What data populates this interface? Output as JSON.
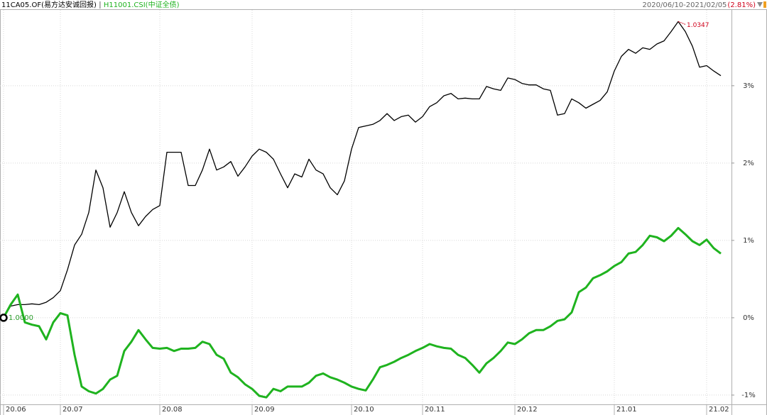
{
  "chart_data": {
    "type": "line",
    "date_range": "2020/06/10-2021/02/05",
    "period_change": "(2.81%)",
    "categories": [
      "20.06",
      null,
      null,
      null,
      null,
      null,
      null,
      null,
      "20.07",
      null,
      null,
      null,
      null,
      null,
      null,
      null,
      null,
      null,
      null,
      null,
      null,
      null,
      "20.08",
      null,
      null,
      null,
      null,
      null,
      null,
      null,
      null,
      null,
      null,
      null,
      null,
      "20.09",
      null,
      null,
      null,
      null,
      null,
      null,
      null,
      null,
      null,
      null,
      null,
      null,
      null,
      "20.10",
      null,
      null,
      null,
      null,
      null,
      null,
      null,
      null,
      null,
      "20.11",
      null,
      null,
      null,
      null,
      null,
      null,
      null,
      null,
      null,
      null,
      null,
      null,
      "20.12",
      null,
      null,
      null,
      null,
      null,
      null,
      null,
      null,
      null,
      null,
      null,
      null,
      null,
      "21.01",
      null,
      null,
      null,
      null,
      null,
      null,
      null,
      null,
      null,
      null,
      null,
      null,
      "21.02",
      null,
      null
    ],
    "series": [
      {
        "name": "11CA05.OF(易方达安诚回报)",
        "color": "#000000",
        "values": [
          0,
          0.15,
          0.17,
          0.17,
          0.18,
          0.17,
          0.2,
          0.26,
          0.35,
          0.62,
          0.94,
          1.08,
          1.36,
          1.91,
          1.68,
          1.17,
          1.36,
          1.63,
          1.36,
          1.19,
          1.31,
          1.4,
          1.45,
          2.14,
          2.14,
          2.14,
          1.71,
          1.71,
          1.91,
          2.18,
          1.91,
          1.95,
          2.02,
          1.83,
          1.95,
          2.09,
          2.18,
          2.14,
          2.05,
          1.86,
          1.68,
          1.86,
          1.82,
          2.05,
          1.91,
          1.86,
          1.68,
          1.59,
          1.77,
          2.18,
          2.46,
          2.48,
          2.5,
          2.55,
          2.64,
          2.55,
          2.6,
          2.62,
          2.53,
          2.6,
          2.73,
          2.78,
          2.87,
          2.9,
          2.83,
          2.84,
          2.83,
          2.83,
          2.99,
          2.96,
          2.94,
          3.1,
          3.08,
          3.03,
          3.01,
          3.01,
          2.96,
          2.94,
          2.62,
          2.64,
          2.83,
          2.78,
          2.71,
          2.76,
          2.81,
          2.92,
          3.19,
          3.38,
          3.47,
          3.42,
          3.49,
          3.47,
          3.54,
          3.58,
          3.7,
          3.83,
          3.7,
          3.51,
          3.24,
          3.26,
          3.19,
          3.13
        ]
      },
      {
        "name": "H11001.CSI(中证全债)",
        "color": "#1fb31f",
        "values": [
          0,
          0.17,
          0.3,
          -0.06,
          -0.09,
          -0.11,
          -0.28,
          -0.06,
          0.06,
          0.03,
          -0.48,
          -0.89,
          -0.95,
          -0.98,
          -0.92,
          -0.8,
          -0.75,
          -0.43,
          -0.31,
          -0.16,
          -0.28,
          -0.39,
          -0.4,
          -0.39,
          -0.43,
          -0.4,
          -0.4,
          -0.39,
          -0.31,
          -0.34,
          -0.48,
          -0.53,
          -0.71,
          -0.77,
          -0.86,
          -0.92,
          -1.01,
          -1.03,
          -0.92,
          -0.95,
          -0.89,
          -0.89,
          -0.89,
          -0.84,
          -0.75,
          -0.72,
          -0.77,
          -0.8,
          -0.84,
          -0.89,
          -0.92,
          -0.94,
          -0.8,
          -0.64,
          -0.61,
          -0.57,
          -0.52,
          -0.48,
          -0.43,
          -0.39,
          -0.34,
          -0.37,
          -0.39,
          -0.4,
          -0.48,
          -0.52,
          -0.61,
          -0.71,
          -0.59,
          -0.52,
          -0.43,
          -0.32,
          -0.34,
          -0.28,
          -0.2,
          -0.16,
          -0.16,
          -0.11,
          -0.04,
          -0.02,
          0.07,
          0.33,
          0.39,
          0.51,
          0.55,
          0.6,
          0.67,
          0.72,
          0.83,
          0.85,
          0.94,
          1.06,
          1.04,
          0.99,
          1.06,
          1.16,
          1.08,
          0.99,
          0.94,
          1.01,
          0.9,
          0.83
        ]
      }
    ],
    "ylim": [
      -1.12,
      3.98
    ],
    "yticks": [
      {
        "value": -1,
        "label": "-1%"
      },
      {
        "value": 0,
        "label": "0%"
      },
      {
        "value": 1,
        "label": "1%"
      },
      {
        "value": 2,
        "label": "2%"
      },
      {
        "value": 3,
        "label": "3%"
      }
    ],
    "grid": true,
    "annotations": [
      {
        "text": "1.0000",
        "color": "#2a9d2a"
      },
      {
        "text": "1.0347",
        "color": "#d0021b"
      }
    ]
  }
}
